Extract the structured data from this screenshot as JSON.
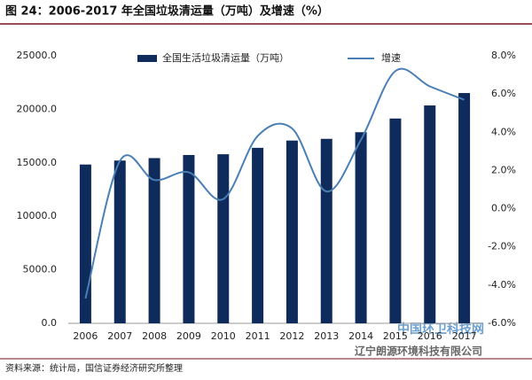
{
  "chart_data": {
    "type": "bar_line",
    "title": "图 24：2006-2017 年全国垃圾清运量（万吨）及增速（%）",
    "categories": [
      "2006",
      "2007",
      "2008",
      "2009",
      "2010",
      "2011",
      "2012",
      "2013",
      "2014",
      "2015",
      "2016",
      "2017"
    ],
    "series": [
      {
        "name": "全国生活垃圾清运量（万吨）",
        "type": "bar",
        "color": "#0f2b5b",
        "values": [
          14840,
          15210,
          15440,
          15730,
          15800,
          16400,
          17080,
          17240,
          17860,
          19140,
          20360,
          21520
        ]
      },
      {
        "name": "增速",
        "type": "line",
        "axis": "y2",
        "color": "#4a7fb5",
        "values": [
          -4.7,
          2.5,
          1.5,
          1.9,
          0.5,
          3.8,
          4.2,
          0.9,
          3.6,
          7.2,
          6.4,
          5.7
        ]
      }
    ],
    "ylim": [
      0,
      25000
    ],
    "yticks": [
      {
        "value": 0,
        "label": "0.0"
      },
      {
        "value": 5000,
        "label": "5000.0"
      },
      {
        "value": 10000,
        "label": "10000.0"
      },
      {
        "value": 15000,
        "label": "15000.0"
      },
      {
        "value": 20000,
        "label": "20000.0"
      },
      {
        "value": 25000,
        "label": "25000.0"
      }
    ],
    "y2lim": [
      -6,
      8
    ],
    "y2ticks": [
      {
        "value": -6,
        "label": "-6.0%"
      },
      {
        "value": -4,
        "label": "-4.0%"
      },
      {
        "value": -2,
        "label": "-2.0%"
      },
      {
        "value": 0,
        "label": "0.0%"
      },
      {
        "value": 2,
        "label": "2.0%"
      },
      {
        "value": 4,
        "label": "4.0%"
      },
      {
        "value": 6,
        "label": "6.0%"
      },
      {
        "value": 8,
        "label": "8.0%"
      }
    ],
    "grid": false,
    "legend": "top",
    "source": "资料来源：统计局，国信证券经济研究所整理",
    "watermarks": [
      "中国环卫科技网",
      "辽宁朗源环境科技有限公司"
    ]
  }
}
